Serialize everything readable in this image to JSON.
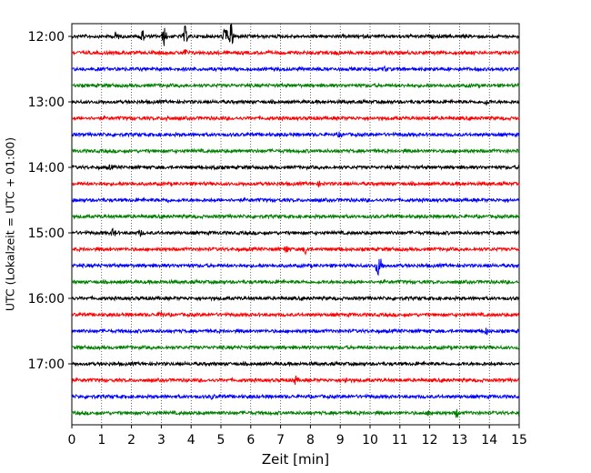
{
  "chart_data": {
    "type": "line",
    "title": "",
    "xlabel": "Zeit  [min]",
    "ylabel": "UTC (Lokalzeit = UTC + 01:00)",
    "xlim": [
      0,
      15
    ],
    "x_ticks": [
      "0",
      "1",
      "2",
      "3",
      "4",
      "5",
      "6",
      "7",
      "8",
      "9",
      "10",
      "11",
      "12",
      "13",
      "14",
      "15"
    ],
    "y_ticks": [
      "12:00",
      "13:00",
      "14:00",
      "15:00",
      "16:00",
      "17:00"
    ],
    "grid": "vertical dotted",
    "legend": "none",
    "colors": [
      "#000000",
      "#ff0000",
      "#0000ff",
      "#008000"
    ],
    "series": [
      {
        "start": "12:00",
        "color": "#000000",
        "events": [
          {
            "t": 1.5,
            "a": 5
          },
          {
            "t": 2.35,
            "a": 8
          },
          {
            "t": 3.1,
            "a": 10
          },
          {
            "t": 3.8,
            "a": 10
          },
          {
            "t": 5.15,
            "a": 14
          },
          {
            "t": 5.35,
            "a": 14
          }
        ]
      },
      {
        "start": "12:15",
        "color": "#ff0000",
        "events": [
          {
            "t": 3.8,
            "a": 3
          },
          {
            "t": 8.9,
            "a": 2
          }
        ]
      },
      {
        "start": "12:30",
        "color": "#0000ff",
        "events": [
          {
            "t": 10.5,
            "a": 2
          }
        ]
      },
      {
        "start": "12:45",
        "color": "#008000",
        "events": []
      },
      {
        "start": "13:00",
        "color": "#000000",
        "events": [
          {
            "t": 13.9,
            "a": 3
          }
        ]
      },
      {
        "start": "13:15",
        "color": "#ff0000",
        "events": [
          {
            "t": 3.2,
            "a": 2
          }
        ]
      },
      {
        "start": "13:30",
        "color": "#0000ff",
        "events": [
          {
            "t": 9.0,
            "a": 2
          }
        ]
      },
      {
        "start": "13:45",
        "color": "#008000",
        "events": []
      },
      {
        "start": "14:00",
        "color": "#000000",
        "events": [
          {
            "t": 1.3,
            "a": 2
          },
          {
            "t": 4.8,
            "a": 2
          }
        ]
      },
      {
        "start": "14:15",
        "color": "#ff0000",
        "events": [
          {
            "t": 8.3,
            "a": 2
          }
        ]
      },
      {
        "start": "14:30",
        "color": "#0000ff",
        "events": [
          {
            "t": 3.2,
            "a": 2
          }
        ]
      },
      {
        "start": "14:45",
        "color": "#008000",
        "events": []
      },
      {
        "start": "15:00",
        "color": "#000000",
        "events": [
          {
            "t": 1.4,
            "a": 4
          },
          {
            "t": 2.3,
            "a": 3
          }
        ]
      },
      {
        "start": "15:15",
        "color": "#ff0000",
        "events": [
          {
            "t": 7.2,
            "a": 4
          },
          {
            "t": 7.85,
            "a": 5
          }
        ]
      },
      {
        "start": "15:30",
        "color": "#0000ff",
        "events": [
          {
            "t": 10.25,
            "a": 8
          },
          {
            "t": 10.35,
            "a": 8
          }
        ]
      },
      {
        "start": "15:45",
        "color": "#008000",
        "events": []
      },
      {
        "start": "16:00",
        "color": "#000000",
        "events": []
      },
      {
        "start": "16:15",
        "color": "#ff0000",
        "events": [
          {
            "t": 3.0,
            "a": 4
          }
        ]
      },
      {
        "start": "16:30",
        "color": "#0000ff",
        "events": [
          {
            "t": 13.9,
            "a": 3
          }
        ]
      },
      {
        "start": "16:45",
        "color": "#008000",
        "events": []
      },
      {
        "start": "17:00",
        "color": "#000000",
        "events": []
      },
      {
        "start": "17:15",
        "color": "#ff0000",
        "events": [
          {
            "t": 7.5,
            "a": 4
          },
          {
            "t": 9.2,
            "a": 2
          }
        ]
      },
      {
        "start": "17:30",
        "color": "#0000ff",
        "events": [
          {
            "t": 4.7,
            "a": 2
          }
        ]
      },
      {
        "start": "17:45",
        "color": "#008000",
        "events": [
          {
            "t": 12.0,
            "a": 3
          },
          {
            "t": 12.9,
            "a": 4
          }
        ]
      }
    ]
  }
}
